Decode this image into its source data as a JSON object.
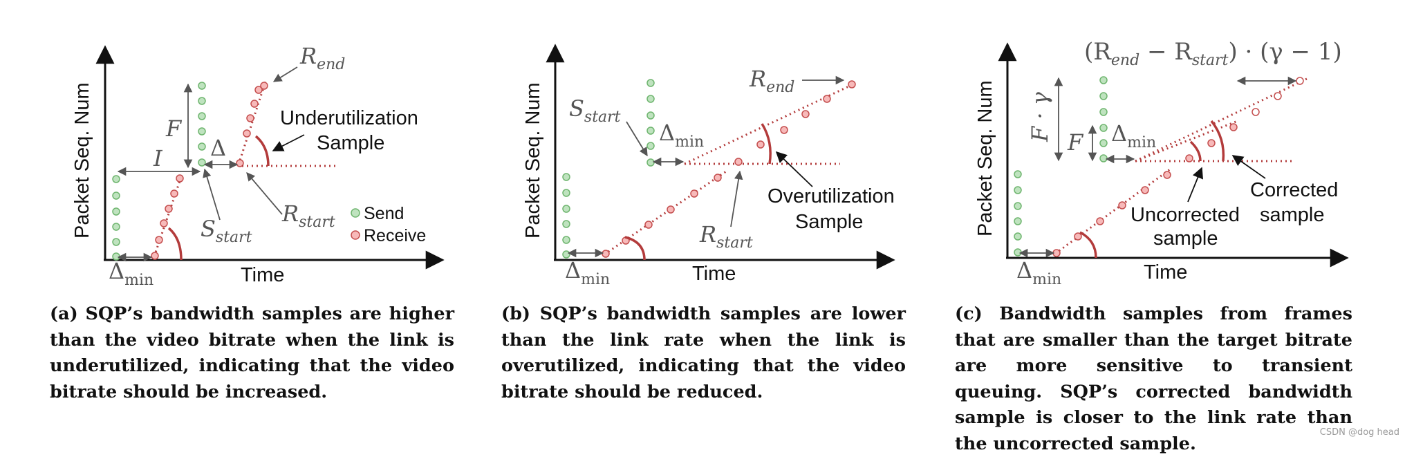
{
  "colors": {
    "send_dot_fill": "#bfe3bf",
    "send_dot_stroke": "#6fb56f",
    "recv_dot_fill": "#f7b9b9",
    "recv_dot_stroke": "#c44e4e",
    "dotted_line": "#b33b3b",
    "angle_arc": "#b33b3b",
    "axis": "#111111",
    "annotation": "#555555"
  },
  "panel_a": {
    "y_axis_label": "Packet Seq. Num",
    "x_axis_label": "Time",
    "delta_min": "Δ",
    "delta_min_sub": "min",
    "F": "F",
    "I": "I",
    "delta": "Δ",
    "r_end": "R",
    "r_end_sub": "end",
    "r_start": "R",
    "r_start_sub": "start",
    "s_start": "S",
    "s_start_sub": "start",
    "sample_line1": "Underutilization",
    "sample_line2": "Sample",
    "legend_send": "Send",
    "legend_receive": "Receive",
    "caption": "(a) SQP’s bandwidth samples are higher than the video bitrate when the link is underutilized, indicating that the video bitrate should be increased."
  },
  "panel_b": {
    "y_axis_label": "Packet Seq. Num",
    "x_axis_label": "Time",
    "delta_min": "Δ",
    "delta_min_sub": "min",
    "s_start": "S",
    "s_start_sub": "start",
    "r_end": "R",
    "r_end_sub": "end",
    "r_start": "R",
    "r_start_sub": "start",
    "sample_line1": "Overutilization",
    "sample_line2": "Sample",
    "caption": "(b) SQP’s bandwidth samples are lower than the link rate when the link is overutilized, indicating that the video bitrate should be reduced."
  },
  "panel_c": {
    "y_axis_label": "Packet Seq. Num",
    "x_axis_label": "Time",
    "delta_min": "Δ",
    "delta_min_sub": "min",
    "F": "F",
    "F_gamma": "F · γ",
    "formula_open": "(R",
    "formula_end_sub": "end",
    "formula_minus": " − R",
    "formula_start_sub": "start",
    "formula_close": ") · (γ − 1)",
    "uncorrected_line1": "Uncorrected",
    "uncorrected_line2": "sample",
    "corrected_line1": "Corrected",
    "corrected_line2": "sample",
    "caption": "(c) Bandwidth samples from frames that are smaller than the target bitrate are more sensitive to transient queuing. SQP’s corrected bandwidth sample is closer to the link rate than the uncorrected sample."
  },
  "watermark": "CSDN @dog head"
}
